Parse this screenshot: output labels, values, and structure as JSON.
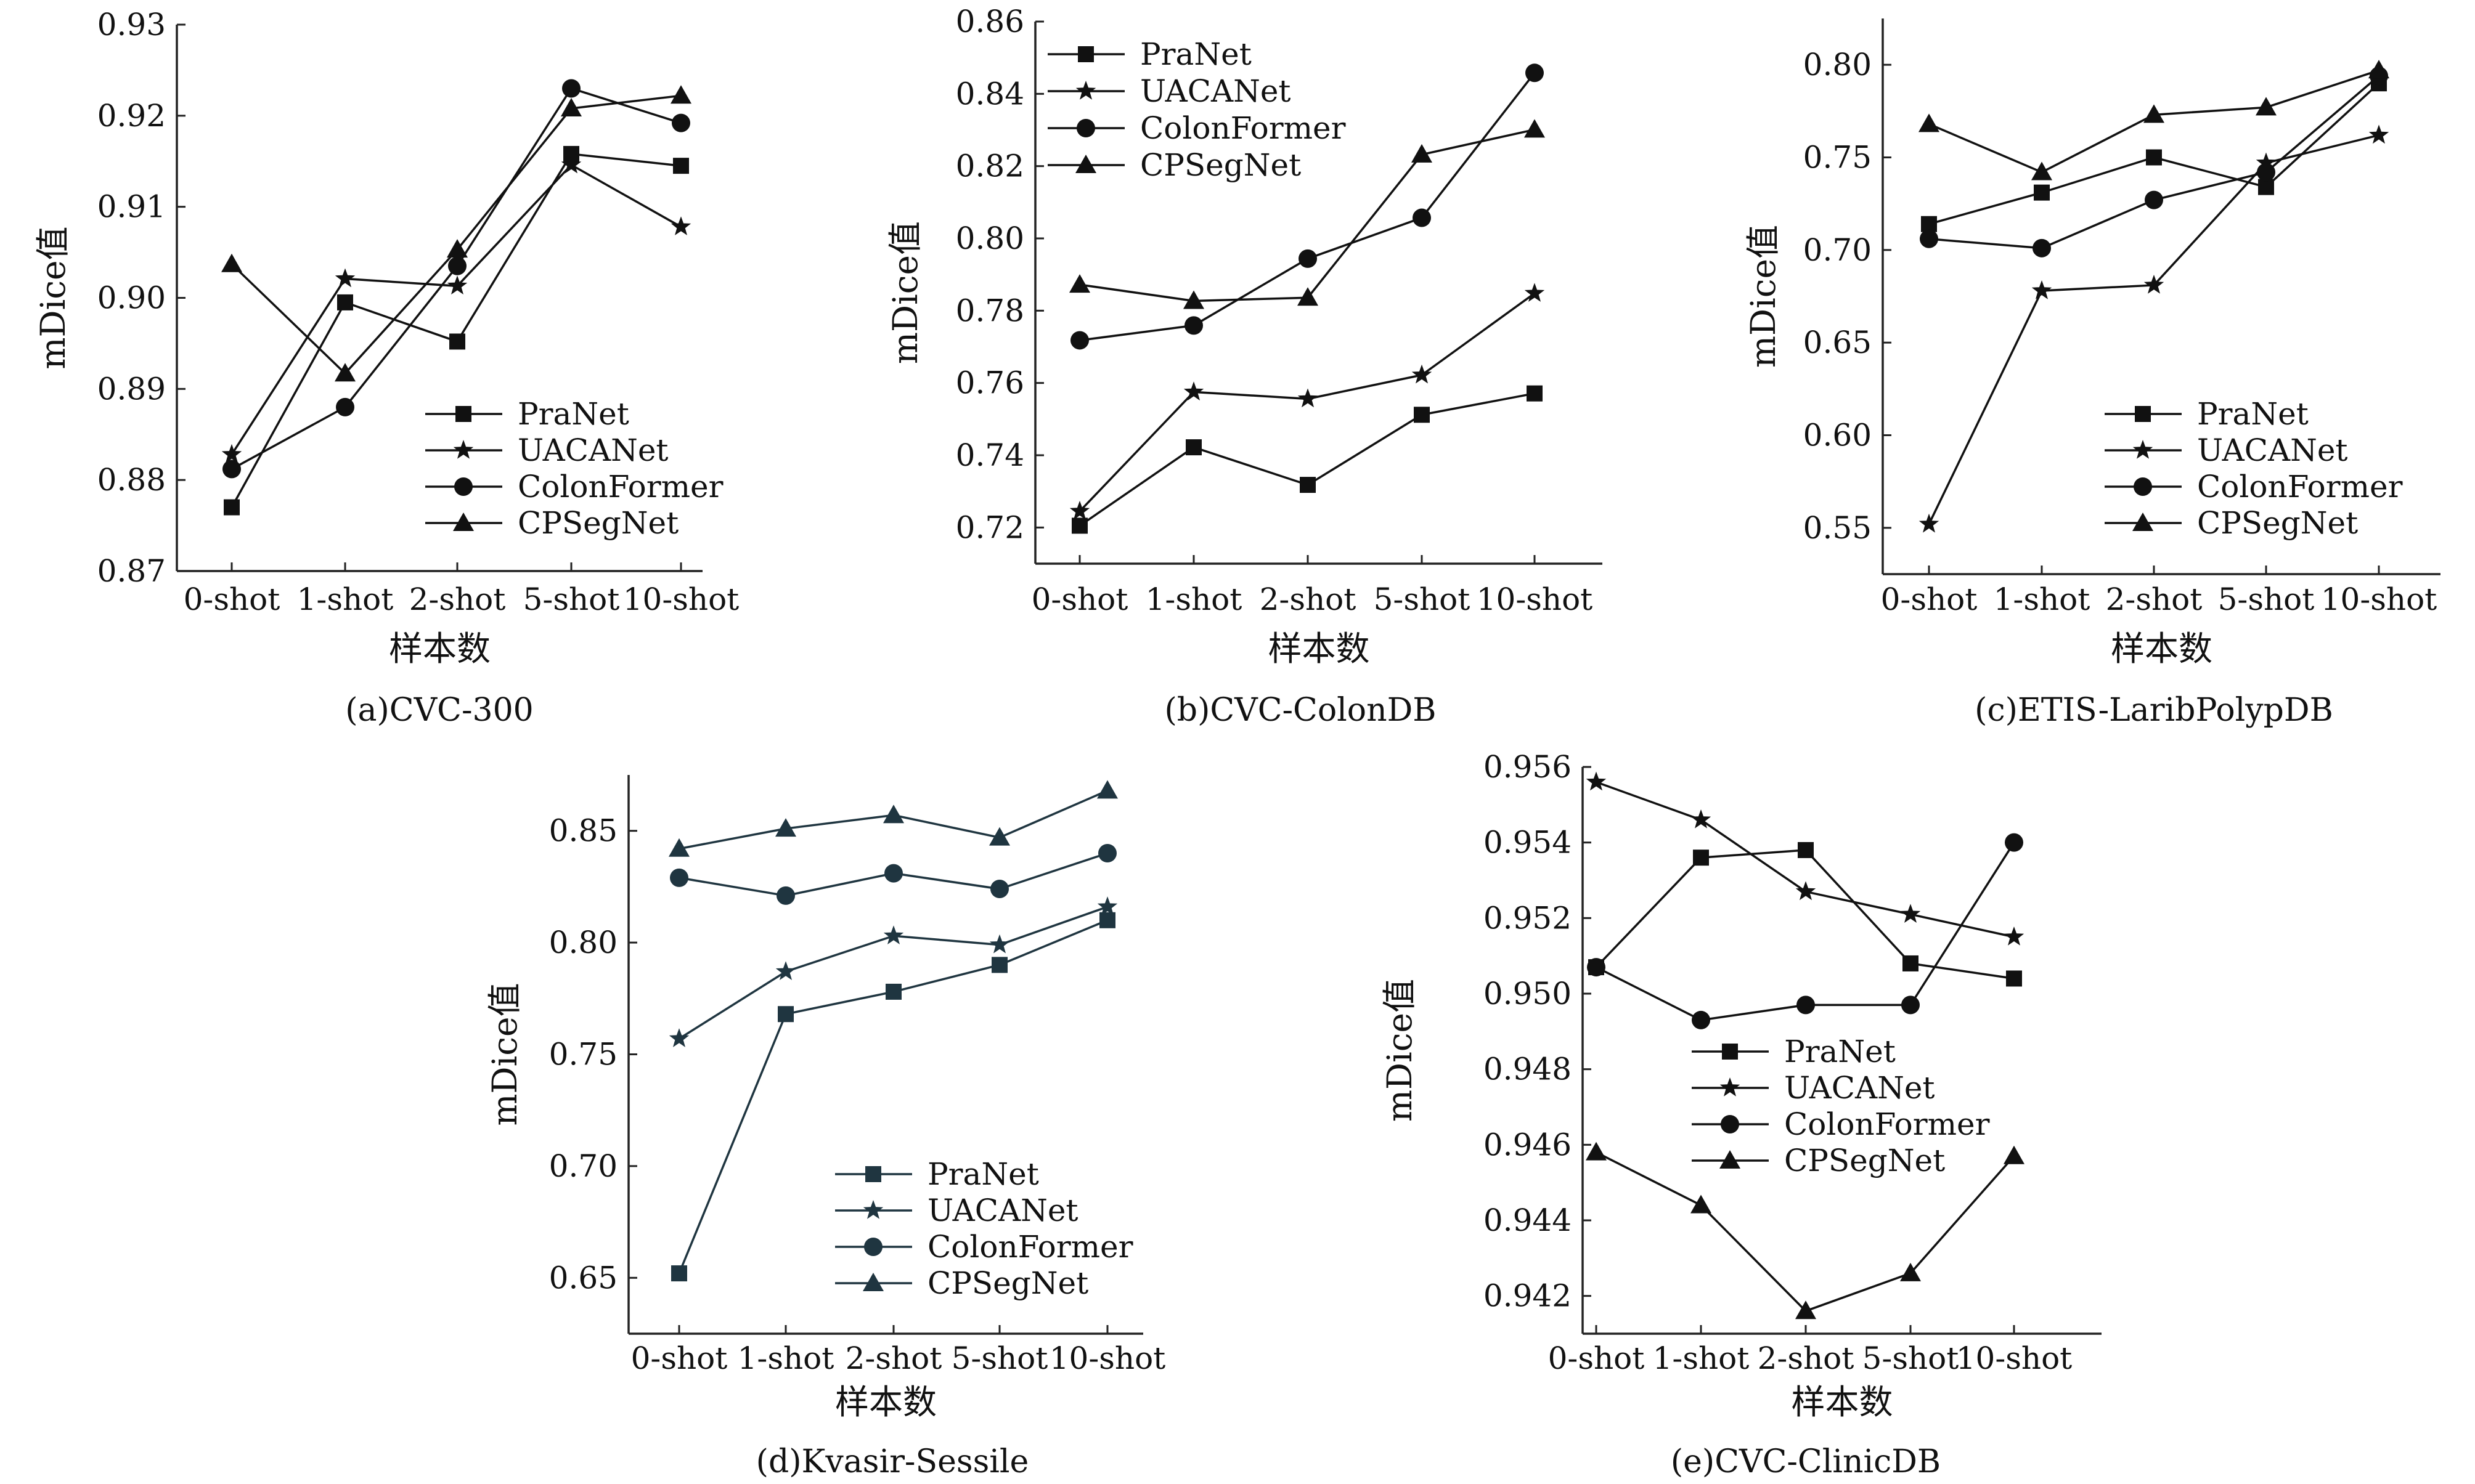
{
  "figure": {
    "background": "#ffffff",
    "x_axis_label": "样本数",
    "y_axis_label": "mDice值"
  },
  "series_style": [
    {
      "name": "PraNet",
      "marker": "square"
    },
    {
      "name": "UACANet",
      "marker": "star"
    },
    {
      "name": "ColonFormer",
      "marker": "circle"
    },
    {
      "name": "CPSegNet",
      "marker": "triangle"
    }
  ],
  "chart_data": [
    {
      "id": "a",
      "type": "line",
      "title": "(a)CVC-300",
      "xlabel": "样本数",
      "ylabel": "mDice值",
      "categories": [
        "0-shot",
        "1-shot",
        "2-shot",
        "5-shot",
        "10-shot"
      ],
      "ylim": [
        0.87,
        0.93
      ],
      "yticks": [
        0.87,
        0.88,
        0.89,
        0.9,
        0.91,
        0.92,
        0.93
      ],
      "ytick_labels": [
        "0.87",
        "0.88",
        "0.89",
        "0.90",
        "0.91",
        "0.92",
        "0.93"
      ],
      "legend": "bottom-right",
      "grid": false,
      "color": "#111111",
      "series": [
        {
          "name": "PraNet",
          "values": [
            0.877,
            0.8995,
            0.8952,
            0.9158,
            0.9145
          ]
        },
        {
          "name": "UACANet",
          "values": [
            0.8828,
            0.9021,
            0.9013,
            0.9146,
            0.9078
          ]
        },
        {
          "name": "ColonFormer",
          "values": [
            0.8812,
            0.888,
            0.9035,
            0.923,
            0.9192
          ]
        },
        {
          "name": "CPSegNet",
          "values": [
            0.9037,
            0.8917,
            0.9053,
            0.9208,
            0.9222
          ]
        }
      ]
    },
    {
      "id": "b",
      "type": "line",
      "title": "(b)CVC-ColonDB",
      "xlabel": "样本数",
      "ylabel": "mDice值",
      "categories": [
        "0-shot",
        "1-shot",
        "2-shot",
        "5-shot",
        "10-shot"
      ],
      "ylim": [
        0.71,
        0.86
      ],
      "yticks": [
        0.72,
        0.74,
        0.76,
        0.78,
        0.8,
        0.82,
        0.84,
        0.86
      ],
      "ytick_labels": [
        "0.72",
        "0.74",
        "0.76",
        "0.78",
        "0.80",
        "0.82",
        "0.84",
        "0.86"
      ],
      "legend": "top-left",
      "grid": false,
      "color": "#111111",
      "series": [
        {
          "name": "PraNet",
          "values": [
            0.7205,
            0.7422,
            0.7318,
            0.7512,
            0.7571
          ]
        },
        {
          "name": "UACANet",
          "values": [
            0.7245,
            0.7575,
            0.7556,
            0.7622,
            0.7848
          ]
        },
        {
          "name": "ColonFormer",
          "values": [
            0.7718,
            0.7759,
            0.7944,
            0.8057,
            0.8458
          ]
        },
        {
          "name": "CPSegNet",
          "values": [
            0.7872,
            0.7827,
            0.7836,
            0.8232,
            0.8301
          ]
        }
      ]
    },
    {
      "id": "c",
      "type": "line",
      "title": "(c)ETIS-LaribPolypDB",
      "xlabel": "样本数",
      "ylabel": "mDice值",
      "categories": [
        "0-shot",
        "1-shot",
        "2-shot",
        "5-shot",
        "10-shot"
      ],
      "ylim": [
        0.525,
        0.825
      ],
      "yticks": [
        0.55,
        0.6,
        0.65,
        0.7,
        0.75,
        0.8
      ],
      "ytick_labels": [
        "0.55",
        "0.60",
        "0.65",
        "0.70",
        "0.75",
        "0.80"
      ],
      "legend": "bottom-right",
      "grid": false,
      "color": "#111111",
      "series": [
        {
          "name": "PraNet",
          "values": [
            0.714,
            0.731,
            0.75,
            0.734,
            0.79
          ]
        },
        {
          "name": "UACANet",
          "values": [
            0.552,
            0.678,
            0.681,
            0.747,
            0.762
          ]
        },
        {
          "name": "ColonFormer",
          "values": [
            0.706,
            0.701,
            0.727,
            0.742,
            0.794
          ]
        },
        {
          "name": "CPSegNet",
          "values": [
            0.768,
            0.742,
            0.773,
            0.777,
            0.797
          ]
        }
      ]
    },
    {
      "id": "d",
      "type": "line",
      "title": "(d)Kvasir-Sessile",
      "xlabel": "样本数",
      "ylabel": "mDice值",
      "categories": [
        "0-shot",
        "1-shot",
        "2-shot",
        "5-shot",
        "10-shot"
      ],
      "ylim": [
        0.625,
        0.875
      ],
      "yticks": [
        0.65,
        0.7,
        0.75,
        0.8,
        0.85
      ],
      "ytick_labels": [
        "0.65",
        "0.70",
        "0.75",
        "0.80",
        "0.85"
      ],
      "legend": "bottom-right",
      "grid": false,
      "color": "#1f3540",
      "series": [
        {
          "name": "PraNet",
          "values": [
            0.652,
            0.768,
            0.778,
            0.79,
            0.81
          ]
        },
        {
          "name": "UACANet",
          "values": [
            0.757,
            0.787,
            0.803,
            0.799,
            0.816
          ]
        },
        {
          "name": "ColonFormer",
          "values": [
            0.829,
            0.821,
            0.831,
            0.824,
            0.84
          ]
        },
        {
          "name": "CPSegNet",
          "values": [
            0.842,
            0.851,
            0.857,
            0.847,
            0.868
          ]
        }
      ]
    },
    {
      "id": "e",
      "type": "line",
      "title": "(e)CVC-ClinicDB",
      "xlabel": "样本数",
      "ylabel": "mDice值",
      "categories": [
        "0-shot",
        "1-shot",
        "2-shot",
        "5-shot",
        "10-shot"
      ],
      "ylim": [
        0.941,
        0.956
      ],
      "yticks": [
        0.942,
        0.944,
        0.946,
        0.948,
        0.95,
        0.952,
        0.954,
        0.956
      ],
      "ytick_labels": [
        "0.942",
        "0.944",
        "0.946",
        "0.948",
        "0.950",
        "0.952",
        "0.954",
        "0.956"
      ],
      "legend": "center-left",
      "grid": false,
      "color": "#111111",
      "series": [
        {
          "name": "PraNet",
          "values": [
            0.9507,
            0.9536,
            0.9538,
            0.9508,
            0.9504
          ]
        },
        {
          "name": "UACANet",
          "values": [
            0.9556,
            0.9546,
            0.9527,
            0.9521,
            0.9515
          ]
        },
        {
          "name": "ColonFormer",
          "values": [
            0.9507,
            0.9493,
            0.9497,
            0.9497,
            0.954
          ]
        },
        {
          "name": "CPSegNet",
          "values": [
            0.9458,
            0.9444,
            0.9416,
            0.9426,
            0.9457
          ]
        }
      ]
    }
  ]
}
